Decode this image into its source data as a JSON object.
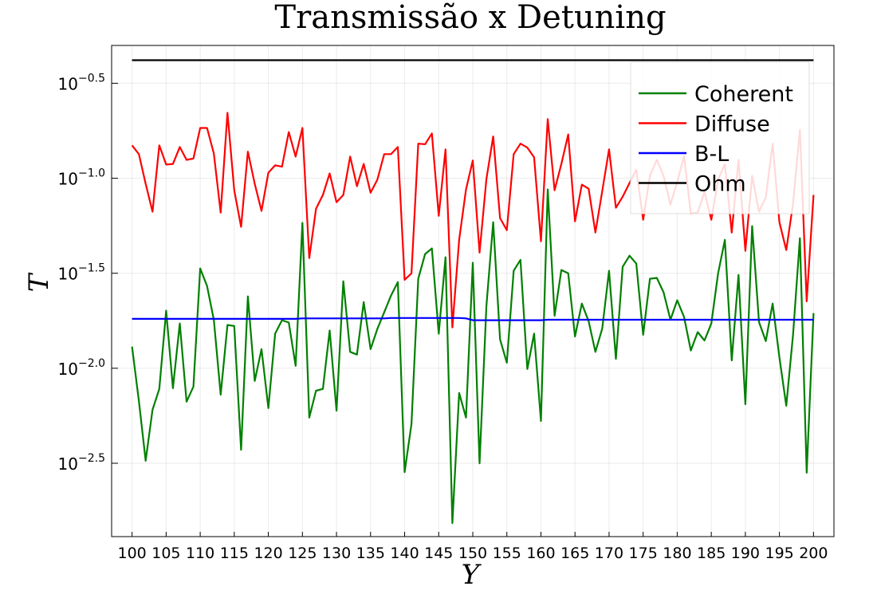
{
  "chart_data": {
    "type": "line",
    "title": "Transmissão x Detuning",
    "xlabel": "Y",
    "ylabel": "T",
    "yscale": "log",
    "grid": true,
    "legend": "top-right",
    "xlim": [
      97,
      203
    ],
    "ylim": [
      0.0013,
      0.5
    ],
    "xticks": [
      100,
      105,
      110,
      115,
      120,
      125,
      130,
      135,
      140,
      145,
      150,
      155,
      160,
      165,
      170,
      175,
      180,
      185,
      190,
      195,
      200
    ],
    "yticks": [
      {
        "value": 0.31623,
        "label": "10^−0.5"
      },
      {
        "value": 0.1,
        "label": "10^−1.0"
      },
      {
        "value": 0.031623,
        "label": "10^−1.5"
      },
      {
        "value": 0.01,
        "label": "10^−2.0"
      },
      {
        "value": 0.0031623,
        "label": "10^−2.5"
      }
    ],
    "x": [
      100,
      101,
      102,
      103,
      104,
      105,
      106,
      107,
      108,
      109,
      110,
      111,
      112,
      113,
      114,
      115,
      116,
      117,
      118,
      119,
      120,
      121,
      122,
      123,
      124,
      125,
      126,
      127,
      128,
      129,
      130,
      131,
      132,
      133,
      134,
      135,
      136,
      137,
      138,
      139,
      140,
      141,
      142,
      143,
      144,
      145,
      146,
      147,
      148,
      149,
      150,
      151,
      152,
      153,
      154,
      155,
      156,
      157,
      158,
      159,
      160,
      161,
      162,
      163,
      164,
      165,
      166,
      167,
      168,
      169,
      170,
      171,
      172,
      173,
      174,
      175,
      176,
      177,
      178,
      179,
      180,
      181,
      182,
      183,
      184,
      185,
      186,
      187,
      188,
      189,
      190,
      191,
      192,
      193,
      194,
      195,
      196,
      197,
      198,
      199,
      200
    ],
    "series": [
      {
        "name": "Coherent",
        "color": "#008000",
        "values": [
          0.013,
          0.00673,
          0.00326,
          0.00605,
          0.00778,
          0.0201,
          0.00785,
          0.0172,
          0.00667,
          0.008,
          0.0335,
          0.0271,
          0.018,
          0.00726,
          0.0169,
          0.0167,
          0.00372,
          0.0239,
          0.00857,
          0.0126,
          0.00617,
          0.0152,
          0.0179,
          0.0174,
          0.0103,
          0.0582,
          0.0055,
          0.00762,
          0.00778,
          0.0158,
          0.00598,
          0.0287,
          0.0122,
          0.0118,
          0.0223,
          0.0126,
          0.0161,
          0.0197,
          0.0241,
          0.0284,
          0.00284,
          0.00508,
          0.0296,
          0.0399,
          0.0427,
          0.0152,
          0.0384,
          0.00153,
          0.00741,
          0.0055,
          0.0359,
          0.00316,
          0.0213,
          0.0587,
          0.0142,
          0.0107,
          0.0326,
          0.0372,
          0.00991,
          0.0152,
          0.00528,
          0.0873,
          0.0189,
          0.0329,
          0.0316,
          0.0147,
          0.0219,
          0.0177,
          0.0122,
          0.0162,
          0.0326,
          0.0112,
          0.0342,
          0.0391,
          0.0355,
          0.015,
          0.0296,
          0.0299,
          0.0251,
          0.018,
          0.0228,
          0.0186,
          0.0124,
          0.0155,
          0.014,
          0.0172,
          0.0316,
          0.0474,
          0.011,
          0.031,
          0.00647,
          0.056,
          0.0175,
          0.0139,
          0.0219,
          0.0114,
          0.00635,
          0.015,
          0.0484,
          0.00282,
          0.0195
        ]
      },
      {
        "name": "Diffuse",
        "color": "#ff0000",
        "values": [
          0.149,
          0.134,
          0.0935,
          0.0667,
          0.149,
          0.118,
          0.119,
          0.146,
          0.125,
          0.127,
          0.184,
          0.184,
          0.135,
          0.0659,
          0.221,
          0.0865,
          0.0555,
          0.138,
          0.0935,
          0.0673,
          0.107,
          0.117,
          0.115,
          0.175,
          0.13,
          0.184,
          0.038,
          0.0692,
          0.0817,
          0.106,
          0.0748,
          0.0817,
          0.13,
          0.0908,
          0.119,
          0.0839,
          0.0982,
          0.134,
          0.134,
          0.146,
          0.0292,
          0.0316,
          0.152,
          0.151,
          0.172,
          0.0635,
          0.142,
          0.0164,
          0.0474,
          0.0873,
          0.124,
          0.0406,
          0.0991,
          0.166,
          0.0617,
          0.0533,
          0.134,
          0.152,
          0.145,
          0.129,
          0.0466,
          0.205,
          0.0865,
          0.119,
          0.17,
          0.0593,
          0.0925,
          0.0881,
          0.0518,
          0.0857,
          0.142,
          0.07,
          0.08,
          0.0944,
          0.111,
          0.0605,
          0.103,
          0.125,
          0.103,
          0.0726,
          0.0953,
          0.131,
          0.0653,
          0.0659,
          0.0849,
          0.0605,
          0.0982,
          0.119,
          0.0518,
          0.125,
          0.0415,
          0.103,
          0.0667,
          0.0793,
          0.152,
          0.0587,
          0.0419,
          0.0735,
          0.18,
          0.0225,
          0.0817
        ]
      },
      {
        "name": "B-L",
        "color": "#0000ff",
        "values": [
          0.0182,
          0.0182,
          0.0182,
          0.0182,
          0.0182,
          0.0182,
          0.0182,
          0.0182,
          0.0182,
          0.0182,
          0.0182,
          0.0182,
          0.0182,
          0.0182,
          0.0182,
          0.0182,
          0.0182,
          0.0182,
          0.0182,
          0.0182,
          0.0182,
          0.0182,
          0.0182,
          0.0182,
          0.0182,
          0.0183,
          0.0183,
          0.0183,
          0.0183,
          0.0183,
          0.0183,
          0.0183,
          0.0183,
          0.0183,
          0.0183,
          0.0183,
          0.0183,
          0.0183,
          0.0184,
          0.0184,
          0.0184,
          0.0184,
          0.0184,
          0.0184,
          0.0184,
          0.0184,
          0.0184,
          0.0184,
          0.0184,
          0.0183,
          0.0179,
          0.0179,
          0.0179,
          0.0179,
          0.0179,
          0.0179,
          0.0179,
          0.0179,
          0.0179,
          0.0179,
          0.0179,
          0.018,
          0.018,
          0.018,
          0.018,
          0.018,
          0.018,
          0.018,
          0.018,
          0.018,
          0.018,
          0.018,
          0.018,
          0.018,
          0.018,
          0.018,
          0.018,
          0.018,
          0.018,
          0.018,
          0.018,
          0.018,
          0.018,
          0.018,
          0.018,
          0.018,
          0.018,
          0.018,
          0.018,
          0.018,
          0.018,
          0.018,
          0.018,
          0.018,
          0.018,
          0.018,
          0.018,
          0.018,
          0.018,
          0.018,
          0.018
        ]
      },
      {
        "name": "Ohm",
        "color": "#000000",
        "values": [
          0.418,
          0.418,
          0.418,
          0.418,
          0.418,
          0.418,
          0.418,
          0.418,
          0.418,
          0.418,
          0.418,
          0.418,
          0.418,
          0.418,
          0.418,
          0.418,
          0.418,
          0.418,
          0.418,
          0.418,
          0.418,
          0.418,
          0.418,
          0.418,
          0.418,
          0.418,
          0.418,
          0.418,
          0.418,
          0.418,
          0.418,
          0.418,
          0.418,
          0.418,
          0.418,
          0.418,
          0.418,
          0.418,
          0.418,
          0.418,
          0.418,
          0.418,
          0.418,
          0.418,
          0.418,
          0.418,
          0.418,
          0.418,
          0.418,
          0.418,
          0.418,
          0.418,
          0.418,
          0.418,
          0.418,
          0.418,
          0.418,
          0.418,
          0.418,
          0.418,
          0.418,
          0.418,
          0.418,
          0.418,
          0.418,
          0.418,
          0.418,
          0.418,
          0.418,
          0.418,
          0.418,
          0.418,
          0.418,
          0.418,
          0.418,
          0.418,
          0.418,
          0.418,
          0.418,
          0.418,
          0.418,
          0.418,
          0.418,
          0.418,
          0.418,
          0.418,
          0.418,
          0.418,
          0.418,
          0.418,
          0.418,
          0.418,
          0.418,
          0.418,
          0.418,
          0.418,
          0.418,
          0.418,
          0.418,
          0.418,
          0.418
        ]
      }
    ]
  }
}
